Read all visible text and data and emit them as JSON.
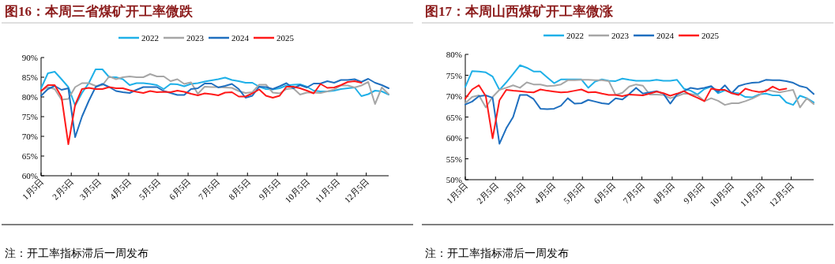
{
  "chart_data": [
    {
      "type": "line",
      "title": "图16：本周三省煤矿开工率微跌",
      "legend": "top",
      "grid": false,
      "marker": "none",
      "line_style": "solid",
      "x": [
        "--01-05",
        "--01-12",
        "--01-19",
        "--01-26",
        "--02-02",
        "--02-09",
        "--02-16",
        "--02-23",
        "--03-02",
        "--03-09",
        "--03-16",
        "--03-23",
        "--03-30",
        "--04-06",
        "--04-13",
        "--04-20",
        "--04-27",
        "--05-04",
        "--05-11",
        "--05-18",
        "--05-25",
        "--06-01",
        "--06-08",
        "--06-15",
        "--06-22",
        "--06-29",
        "--07-06",
        "--07-13",
        "--07-20",
        "--07-27",
        "--08-03",
        "--08-10",
        "--08-17",
        "--08-24",
        "--08-31",
        "--09-07",
        "--09-14",
        "--09-21",
        "--09-28",
        "--10-05",
        "--10-12",
        "--10-19",
        "--10-26",
        "--11-02",
        "--11-09",
        "--11-16",
        "--11-23",
        "--11-30",
        "--12-07",
        "--12-14",
        "--12-21",
        "--12-28"
      ],
      "xlim": [
        "--01-05",
        "--12-28"
      ],
      "xticks": [
        {
          "value": "--01-05",
          "label": "1月5日"
        },
        {
          "value": "--02-05",
          "label": "2月5日"
        },
        {
          "value": "--03-05",
          "label": "3月5日"
        },
        {
          "value": "--04-05",
          "label": "4月5日"
        },
        {
          "value": "--05-05",
          "label": "5月5日"
        },
        {
          "value": "--06-05",
          "label": "6月5日"
        },
        {
          "value": "--07-05",
          "label": "7月5日"
        },
        {
          "value": "--08-05",
          "label": "8月5日"
        },
        {
          "value": "--09-05",
          "label": "9月5日"
        },
        {
          "value": "--10-05",
          "label": "10月5日"
        },
        {
          "value": "--11-05",
          "label": "11月5日"
        },
        {
          "value": "--12-05",
          "label": "12月5日"
        }
      ],
      "ylim": [
        60,
        90
      ],
      "yticks": [
        {
          "value": 60,
          "label": "60%"
        },
        {
          "value": 65,
          "label": "65%"
        },
        {
          "value": 70,
          "label": "70%"
        },
        {
          "value": 75,
          "label": "75%"
        },
        {
          "value": 80,
          "label": "80%"
        },
        {
          "value": 85,
          "label": "85%"
        },
        {
          "value": 90,
          "label": "90%"
        }
      ],
      "annotations": [
        "注：开工率指标滞后一周发布"
      ],
      "series": [
        {
          "name": "2022",
          "color": "#1fb0e8",
          "values": [
            82.2,
            86,
            86.4,
            84.5,
            82.5,
            77.8,
            81,
            83.5,
            87,
            87,
            85,
            85,
            84.5,
            83,
            83.5,
            83.5,
            83.3,
            83,
            82,
            83.3,
            83.2,
            82.7,
            83.3,
            83.5,
            83.9,
            84.2,
            84.5,
            84.9,
            84.3,
            84,
            83.6,
            83.6,
            82.6,
            82,
            81.9,
            82.2,
            82.9,
            83.1,
            83.2,
            82.6,
            81.6,
            81.4,
            81.4,
            81.6,
            82,
            82.2,
            82.4,
            80.2,
            80.7,
            81.6,
            81.4,
            80.6
          ]
        },
        {
          "name": "2023",
          "color": "#a6a6a6",
          "values": [
            81.5,
            82.5,
            82,
            79.3,
            79.5,
            82.5,
            83.5,
            83.5,
            82.8,
            83,
            85.2,
            84.5,
            85,
            85.2,
            85,
            85,
            85.8,
            85.2,
            85.2,
            84,
            84.5,
            83.3,
            83.7,
            80.8,
            82.6,
            82.5,
            82.5,
            82.4,
            82.3,
            81.5,
            81,
            81.2,
            83.1,
            83.1,
            81.1,
            80.9,
            82,
            82.2,
            80.6,
            81.1,
            81.1,
            81,
            81.4,
            81.9,
            82.9,
            82.9,
            82.4,
            82.9,
            83.8,
            78.2,
            82.4,
            80.7
          ]
        },
        {
          "name": "2024",
          "color": "#1f6fbf",
          "values": [
            80.3,
            82,
            82.8,
            81.8,
            82.2,
            69.8,
            75,
            79,
            82.5,
            83.3,
            82.5,
            81.5,
            81.2,
            81,
            81.8,
            82.5,
            82.5,
            82.5,
            81.5,
            81,
            80.5,
            80.5,
            82,
            82.2,
            83.4,
            83.4,
            82.4,
            82.8,
            83.3,
            82,
            79.8,
            80.3,
            82.6,
            82.5,
            82,
            82.7,
            83.5,
            82.2,
            83,
            82.4,
            83.4,
            83.4,
            84,
            83.6,
            84.3,
            84.3,
            84.5,
            83.8,
            84.6,
            83.6,
            83,
            82.2
          ]
        },
        {
          "name": "2025",
          "color": "#ff1a1a",
          "values": [
            81.5,
            83,
            83,
            80,
            68,
            78,
            82,
            82.3,
            82,
            82,
            82.5,
            82.2,
            82.2,
            81.7,
            81.3,
            81,
            81.5,
            81.2,
            81.3,
            81.2,
            81.6,
            81.3,
            80.8,
            80.4,
            80.9,
            80.7,
            80.4,
            81.1,
            81.2,
            80.1,
            80.1,
            80.9,
            81.9,
            80.3,
            79.8,
            80.3,
            82.6,
            82.6,
            82.2,
            81.6,
            80.9,
            83.3,
            82.3,
            82.4,
            83,
            83.8,
            84,
            83.6,
            null,
            null,
            null,
            null
          ]
        }
      ]
    },
    {
      "type": "line",
      "title": "图17：本周山西煤矿开工率微涨",
      "legend": "top",
      "grid": false,
      "marker": "none",
      "line_style": "solid",
      "x": [
        "--01-05",
        "--01-12",
        "--01-19",
        "--01-26",
        "--02-02",
        "--02-09",
        "--02-16",
        "--02-23",
        "--03-02",
        "--03-09",
        "--03-16",
        "--03-23",
        "--03-30",
        "--04-06",
        "--04-13",
        "--04-20",
        "--04-27",
        "--05-04",
        "--05-11",
        "--05-18",
        "--05-25",
        "--06-01",
        "--06-08",
        "--06-15",
        "--06-22",
        "--06-29",
        "--07-06",
        "--07-13",
        "--07-20",
        "--07-27",
        "--08-03",
        "--08-10",
        "--08-17",
        "--08-24",
        "--08-31",
        "--09-07",
        "--09-14",
        "--09-21",
        "--09-28",
        "--10-05",
        "--10-12",
        "--10-19",
        "--10-26",
        "--11-02",
        "--11-09",
        "--11-16",
        "--11-23",
        "--11-30",
        "--12-07",
        "--12-14",
        "--12-21",
        "--12-28"
      ],
      "xlim": [
        "--01-05",
        "--12-28"
      ],
      "xticks": [
        {
          "value": "--01-05",
          "label": "1月5日"
        },
        {
          "value": "--02-05",
          "label": "2月5日"
        },
        {
          "value": "--03-05",
          "label": "3月5日"
        },
        {
          "value": "--04-05",
          "label": "4月5日"
        },
        {
          "value": "--05-05",
          "label": "5月5日"
        },
        {
          "value": "--06-05",
          "label": "6月5日"
        },
        {
          "value": "--07-05",
          "label": "7月5日"
        },
        {
          "value": "--08-05",
          "label": "8月5日"
        },
        {
          "value": "--09-05",
          "label": "9月5日"
        },
        {
          "value": "--10-05",
          "label": "10月5日"
        },
        {
          "value": "--11-05",
          "label": "11月5日"
        },
        {
          "value": "--12-05",
          "label": "12月5日"
        }
      ],
      "ylim": [
        50,
        80
      ],
      "yticks": [
        {
          "value": 50,
          "label": "50%"
        },
        {
          "value": 55,
          "label": "55%"
        },
        {
          "value": 60,
          "label": "60%"
        },
        {
          "value": 65,
          "label": "65%"
        },
        {
          "value": 70,
          "label": "70%"
        },
        {
          "value": 75,
          "label": "75%"
        },
        {
          "value": 80,
          "label": "80%"
        }
      ],
      "annotations": [
        "注：开工率指标滞后一周发布"
      ],
      "series": [
        {
          "name": "2022",
          "color": "#1fb0e8",
          "values": [
            72.2,
            76,
            75.9,
            75.7,
            74.7,
            71.5,
            73.3,
            75.3,
            77.4,
            76.8,
            75.9,
            75.9,
            74.5,
            73.1,
            74,
            74,
            74,
            74,
            72,
            73.5,
            74,
            73.7,
            73.6,
            74.2,
            73.9,
            73.7,
            73.7,
            73.7,
            73.9,
            73.7,
            73.7,
            73.9,
            71.8,
            71.3,
            70.4,
            71.7,
            72.3,
            70.7,
            71.4,
            70.8,
            70.7,
            69.8,
            69.7,
            70.4,
            70.6,
            70.2,
            70.2,
            68.5,
            67.9,
            70.1,
            69.5,
            68.5
          ]
        },
        {
          "name": "2023",
          "color": "#a6a6a6",
          "values": [
            68.3,
            69.8,
            70.2,
            67.3,
            69.8,
            71.5,
            72,
            72.6,
            72,
            73.3,
            72.8,
            72.8,
            72.4,
            72.5,
            72.8,
            73.8,
            73.8,
            73.9,
            73.9,
            73.8,
            73.8,
            73.6,
            70.3,
            70.8,
            72.3,
            72.8,
            72.5,
            70.4,
            70.4,
            70.3,
            69.5,
            70,
            70.6,
            70.5,
            70.2,
            68.8,
            69.5,
            68.9,
            67.9,
            68.3,
            68.3,
            68.8,
            69.4,
            70.2,
            71.5,
            71.2,
            70.9,
            71.2,
            71.5,
            67.3,
            69.5,
            68.1
          ]
        },
        {
          "name": "2024",
          "color": "#1f6fbf",
          "values": [
            68,
            68.7,
            70,
            70.2,
            69.6,
            58.6,
            62.3,
            65,
            70.3,
            70.3,
            69.3,
            67,
            66.9,
            67,
            67.7,
            69.5,
            68.2,
            68.3,
            69.1,
            68.7,
            68.3,
            68.1,
            69.5,
            69.2,
            70.5,
            72,
            70.6,
            70.9,
            71.2,
            70.6,
            68.2,
            70.4,
            71.2,
            72,
            71.7,
            72,
            72.4,
            71,
            72.6,
            70.7,
            72.4,
            72.9,
            73.2,
            73.3,
            73.9,
            73.8,
            73.8,
            73.6,
            73.2,
            72.4,
            72,
            70.5
          ]
        },
        {
          "name": "2025",
          "color": "#ff1a1a",
          "values": [
            69.4,
            71.6,
            72.6,
            70,
            59.9,
            69,
            71.5,
            71.3,
            71.2,
            71,
            70.9,
            71.6,
            71.3,
            71.1,
            70.9,
            71,
            71.3,
            71.6,
            70.9,
            71,
            70.6,
            70.3,
            70.3,
            70,
            70.4,
            70.3,
            70.2,
            70.6,
            71.1,
            70.7,
            70.1,
            70.6,
            71.2,
            70.3,
            69.6,
            68.8,
            71.8,
            71.5,
            71.5,
            70.7,
            70.3,
            71.8,
            71.3,
            71,
            71.2,
            72.3,
            71.5,
            71.8,
            null,
            null,
            null,
            null
          ]
        }
      ]
    }
  ]
}
